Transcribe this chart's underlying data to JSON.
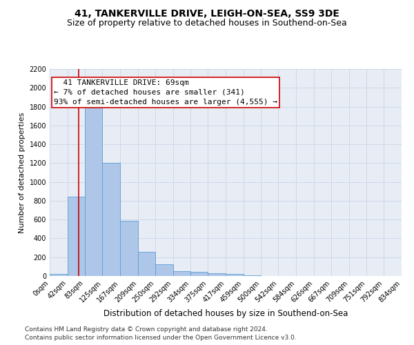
{
  "title_line1": "41, TANKERVILLE DRIVE, LEIGH-ON-SEA, SS9 3DE",
  "title_line2": "Size of property relative to detached houses in Southend-on-Sea",
  "xlabel": "Distribution of detached houses by size in Southend-on-Sea",
  "ylabel": "Number of detached properties",
  "footnote1": "Contains HM Land Registry data © Crown copyright and database right 2024.",
  "footnote2": "Contains public sector information licensed under the Open Government Licence v3.0.",
  "bar_edges": [
    0,
    42,
    83,
    125,
    167,
    209,
    250,
    292,
    334,
    375,
    417,
    459,
    500,
    542,
    584,
    626,
    667,
    709,
    751,
    792,
    834
  ],
  "bar_heights": [
    25,
    840,
    1800,
    1200,
    590,
    260,
    125,
    50,
    45,
    30,
    25,
    10,
    0,
    0,
    0,
    0,
    0,
    0,
    0,
    0
  ],
  "bar_color": "#aec6e8",
  "bar_edgecolor": "#5a9fd4",
  "vline_x": 69,
  "vline_color": "#cc0000",
  "annotation_text": "  41 TANKERVILLE DRIVE: 69sqm\n← 7% of detached houses are smaller (341)\n93% of semi-detached houses are larger (4,555) →",
  "annotation_box_edgecolor": "#cc0000",
  "annotation_box_facecolor": "#ffffff",
  "ylim": [
    0,
    2200
  ],
  "xlim": [
    0,
    834
  ],
  "tick_labels": [
    "0sqm",
    "42sqm",
    "83sqm",
    "125sqm",
    "167sqm",
    "209sqm",
    "250sqm",
    "292sqm",
    "334sqm",
    "375sqm",
    "417sqm",
    "459sqm",
    "500sqm",
    "542sqm",
    "584sqm",
    "626sqm",
    "667sqm",
    "709sqm",
    "751sqm",
    "792sqm",
    "834sqm"
  ],
  "ytick_labels": [
    "0",
    "200",
    "400",
    "600",
    "800",
    "1000",
    "1200",
    "1400",
    "1600",
    "1800",
    "2000",
    "2200"
  ],
  "ytick_values": [
    0,
    200,
    400,
    600,
    800,
    1000,
    1200,
    1400,
    1600,
    1800,
    2000,
    2200
  ],
  "grid_color": "#c8d4e8",
  "background_color": "#e8edf5",
  "figure_facecolor": "#ffffff",
  "title1_fontsize": 10,
  "title2_fontsize": 9,
  "xlabel_fontsize": 8.5,
  "ylabel_fontsize": 8,
  "tick_fontsize": 7,
  "annotation_fontsize": 8,
  "footnote_fontsize": 6.5
}
